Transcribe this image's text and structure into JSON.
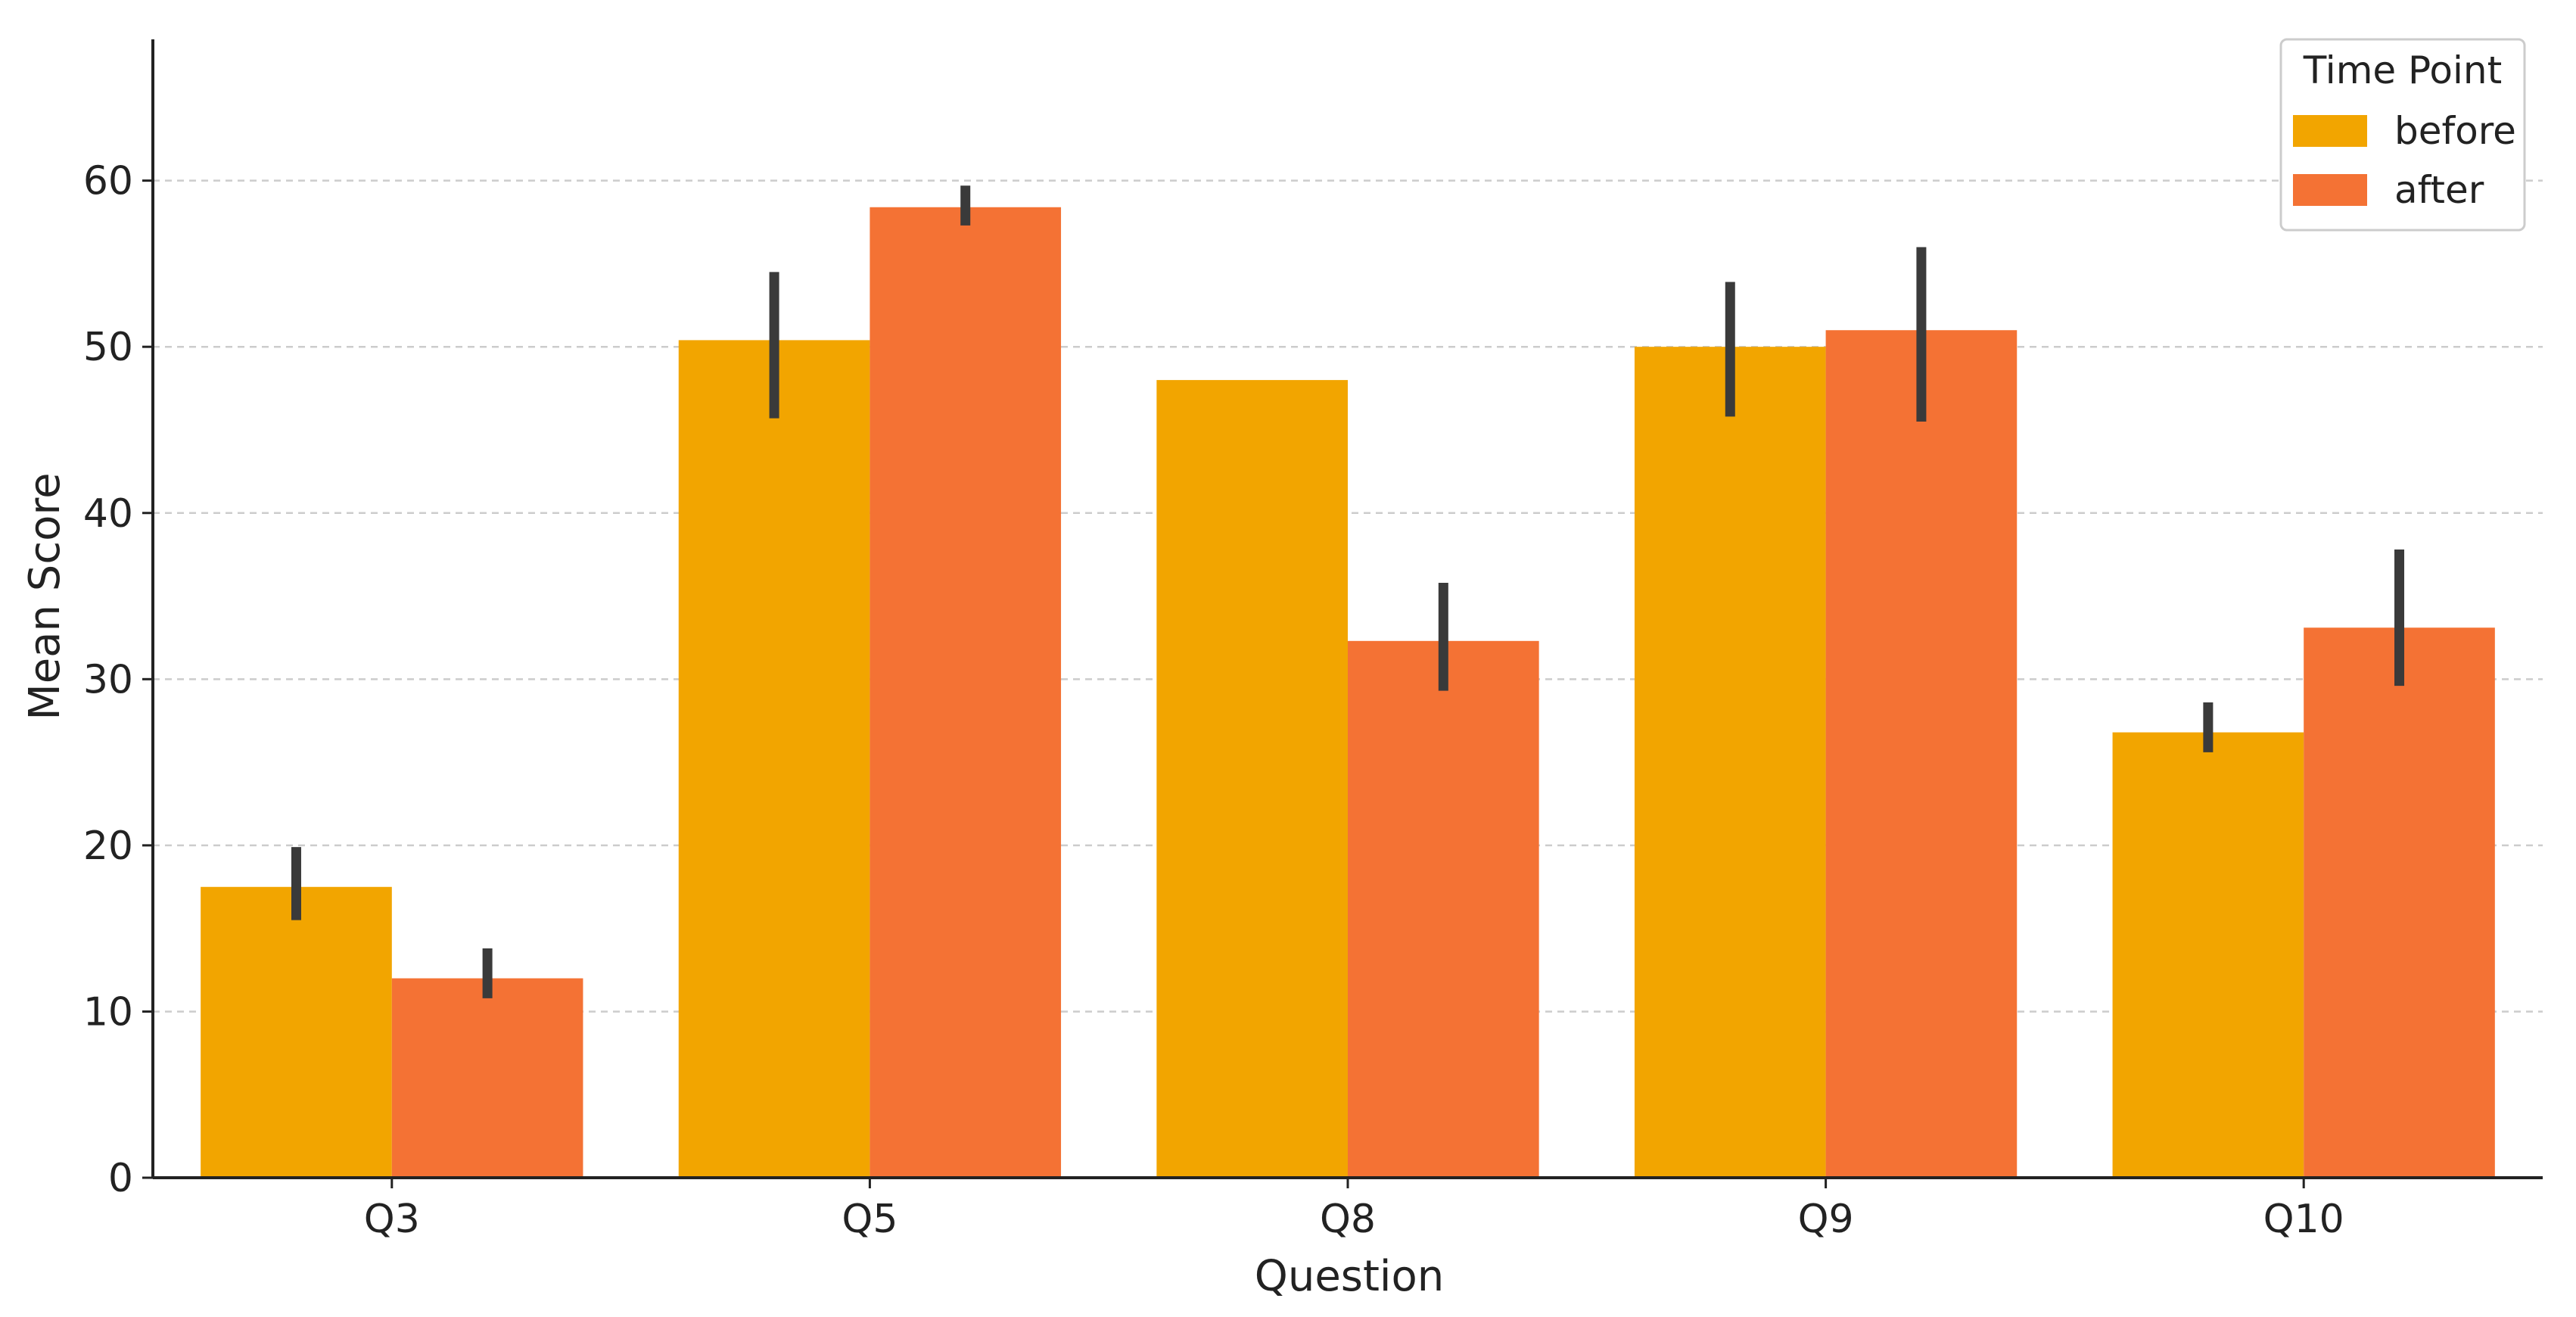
{
  "chart_data": {
    "type": "bar",
    "title": "",
    "xlabel": "Question",
    "ylabel": "Mean Score",
    "categories": [
      "Q3",
      "Q5",
      "Q8",
      "Q9",
      "Q10"
    ],
    "ylim": [
      0,
      68.5
    ],
    "yticks": [
      "0",
      "10",
      "20",
      "30",
      "40",
      "50",
      "60"
    ],
    "grid": "horizontal-dashed",
    "legend": {
      "title": "Time Point",
      "placement": "top-right"
    },
    "colors": {
      "before": "#f2a500",
      "after": "#f47234",
      "error_bar": "#3a3a3a",
      "grid": "#cccccc",
      "axis": "#222222"
    },
    "series": [
      {
        "name": "before",
        "values": [
          17.5,
          50.4,
          48.0,
          50.0,
          26.8
        ],
        "err_low": [
          15.5,
          45.7,
          48.0,
          45.8,
          25.6
        ],
        "err_high": [
          19.9,
          54.5,
          48.0,
          53.9,
          28.6
        ]
      },
      {
        "name": "after",
        "values": [
          12.0,
          58.4,
          32.3,
          51.0,
          33.1
        ],
        "err_low": [
          10.8,
          57.3,
          29.3,
          45.5,
          29.6
        ],
        "err_high": [
          13.8,
          59.7,
          35.8,
          56.0,
          37.8
        ]
      }
    ]
  }
}
